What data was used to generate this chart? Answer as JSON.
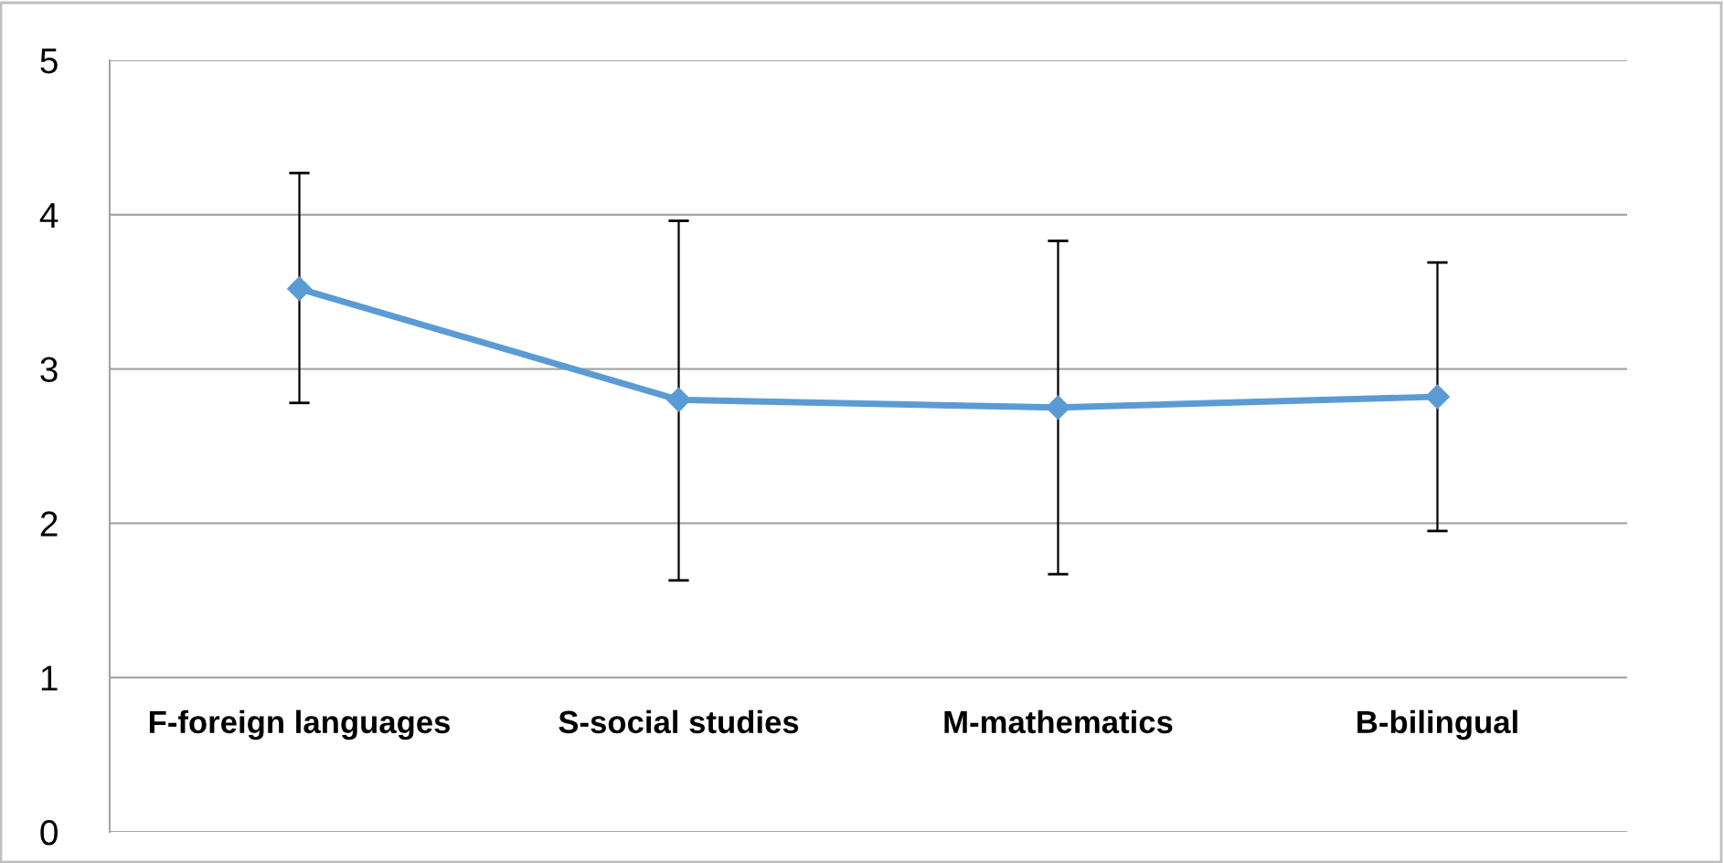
{
  "chart_data": {
    "type": "line",
    "categories": [
      "F-foreign languages",
      "S-social studies",
      "M-mathematics",
      "B-bilingual"
    ],
    "series": [
      {
        "color": "#5b9bd5",
        "values": [
          3.52,
          2.8,
          2.75,
          2.82
        ],
        "errors": [
          [
            2.78,
            4.27
          ],
          [
            1.63,
            3.96
          ],
          [
            1.67,
            3.83
          ],
          [
            1.95,
            3.69
          ]
        ]
      }
    ],
    "ylim": [
      0,
      5
    ],
    "yticks": [
      0,
      1,
      2,
      3,
      4,
      5
    ],
    "grid": "y",
    "marker": "diamond",
    "line_style": "solid"
  }
}
